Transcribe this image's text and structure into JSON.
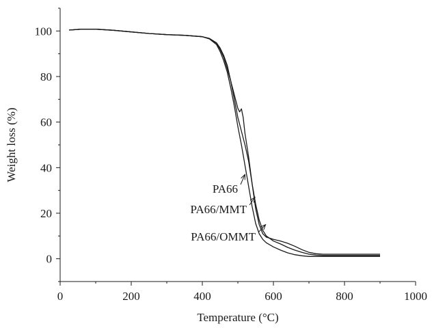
{
  "chart_data": {
    "type": "line",
    "title": "",
    "xlabel": "Temperature (°C)",
    "ylabel": "Weight loss (%)",
    "xlim": [
      0,
      1000
    ],
    "ylim": [
      -10,
      110
    ],
    "xticks": [
      0,
      200,
      400,
      600,
      800,
      1000
    ],
    "yticks": [
      0,
      20,
      40,
      60,
      80,
      100
    ],
    "grid": false,
    "legend": "none",
    "series": [
      {
        "name": "PA66",
        "color": "#1a1a1a",
        "x": [
          25,
          60,
          100,
          150,
          200,
          250,
          300,
          350,
          400,
          420,
          440,
          450,
          460,
          470,
          480,
          490,
          500,
          505,
          510,
          515,
          520,
          530,
          540,
          550,
          560,
          570,
          580,
          600,
          620,
          640,
          660,
          680,
          700,
          720,
          740,
          760,
          800,
          850,
          900
        ],
        "y": [
          100.4,
          100.8,
          100.8,
          100.3,
          99.6,
          98.9,
          98.4,
          98.1,
          97.5,
          96.7,
          94.8,
          92.5,
          89.3,
          85.0,
          78.0,
          72.0,
          66.0,
          64.5,
          65.8,
          62.0,
          55.0,
          45.0,
          33.0,
          22.0,
          15.0,
          11.0,
          9.5,
          8.5,
          7.8,
          6.8,
          5.5,
          4.0,
          2.8,
          2.2,
          2.0,
          2.0,
          2.0,
          2.0,
          2.0
        ]
      },
      {
        "name": "PA66/MMT",
        "color": "#1a1a1a",
        "x": [
          25,
          60,
          100,
          150,
          200,
          250,
          300,
          350,
          400,
          420,
          440,
          450,
          460,
          470,
          480,
          490,
          500,
          510,
          520,
          530,
          540,
          550,
          560,
          570,
          580,
          600,
          620,
          640,
          660,
          680,
          700,
          720,
          740,
          760,
          800,
          850,
          900
        ],
        "y": [
          100.4,
          100.8,
          100.8,
          100.3,
          99.6,
          98.9,
          98.4,
          98.1,
          97.5,
          96.7,
          94.6,
          92.0,
          88.5,
          83.5,
          78.0,
          70.0,
          62.0,
          56.0,
          50.0,
          43.0,
          33.0,
          24.0,
          17.0,
          12.5,
          10.0,
          7.8,
          6.5,
          5.0,
          3.8,
          2.8,
          2.0,
          1.6,
          1.5,
          1.5,
          1.5,
          1.5,
          1.5
        ]
      },
      {
        "name": "PA66/OMMT",
        "color": "#1a1a1a",
        "x": [
          25,
          60,
          100,
          150,
          200,
          250,
          300,
          350,
          400,
          420,
          440,
          450,
          460,
          470,
          480,
          490,
          500,
          510,
          520,
          530,
          540,
          550,
          560,
          570,
          580,
          600,
          620,
          640,
          660,
          680,
          700,
          720,
          740,
          760,
          800,
          850,
          900
        ],
        "y": [
          100.4,
          100.8,
          100.8,
          100.3,
          99.6,
          98.9,
          98.4,
          98.1,
          97.5,
          96.5,
          94.0,
          91.0,
          87.0,
          82.0,
          75.0,
          67.0,
          58.0,
          50.0,
          41.0,
          32.0,
          23.0,
          15.5,
          11.0,
          8.5,
          7.0,
          5.2,
          3.8,
          2.6,
          1.8,
          1.3,
          1.0,
          1.0,
          1.0,
          1.0,
          1.0,
          1.0,
          1.0
        ]
      }
    ],
    "annotations": [
      {
        "text": "PA66",
        "series": 0,
        "label_x": 500,
        "label_y": 29,
        "arrow_to_x": 520,
        "arrow_to_y": 37
      },
      {
        "text": "PA66/MMT",
        "series": 1,
        "label_x": 525,
        "label_y": 20,
        "arrow_to_x": 548,
        "arrow_to_y": 27
      },
      {
        "text": "PA66/OMMT",
        "series": 2,
        "label_x": 550,
        "label_y": 8,
        "arrow_to_x": 578,
        "arrow_to_y": 15
      }
    ]
  }
}
